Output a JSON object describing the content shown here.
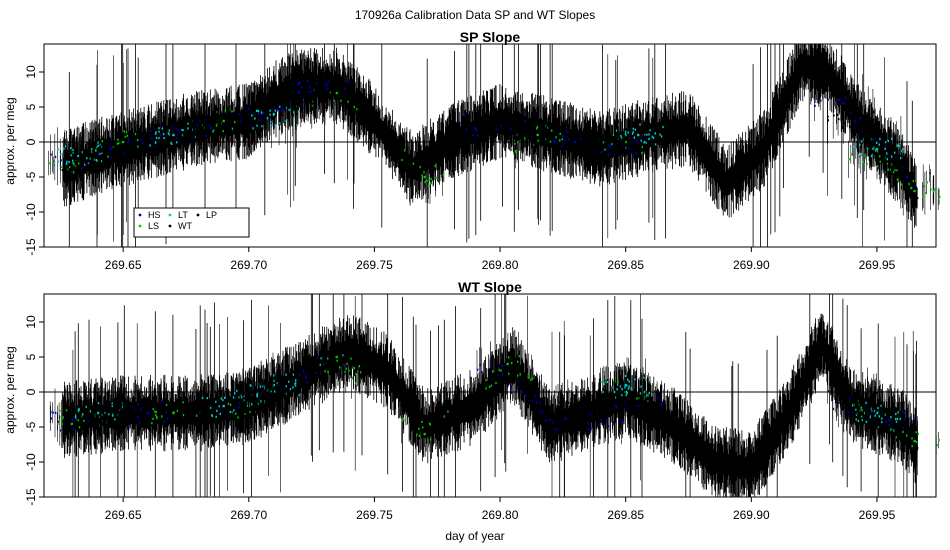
{
  "chart_data": {
    "suptitle": "170926a   Calibration Data SP and WT Slopes",
    "xlabel": "day of year",
    "xlim": [
      269.6185,
      269.9735
    ],
    "x_ticks": [
      269.65,
      269.7,
      269.75,
      269.8,
      269.85,
      269.9,
      269.95
    ],
    "x_tick_labels": [
      "269.65",
      "269.70",
      "269.75",
      "269.80",
      "269.85",
      "269.90",
      "269.95"
    ],
    "legend": {
      "position": "bottom-left",
      "entries": [
        {
          "label": "HS",
          "color": "#0000cc"
        },
        {
          "label": "LT",
          "color": "#00cccc"
        },
        {
          "label": "LP",
          "color": "#000000"
        },
        {
          "label": "LS",
          "color": "#00cc00"
        },
        {
          "label": "WT",
          "color": "#000000"
        }
      ]
    },
    "panels": [
      {
        "type": "scatter",
        "title": "SP Slope",
        "ylabel": "approx. per meg",
        "ylim": [
          -15,
          14
        ],
        "y_ticks": [
          -15,
          -10,
          -5,
          0,
          5,
          10
        ],
        "y_tick_labels": [
          "-15",
          "-10",
          "-5",
          "0",
          "5",
          "10"
        ],
        "hline": 0,
        "series": [
          {
            "name": "WT",
            "color": "#000000",
            "x": [
              269.626,
              269.64,
              269.66,
              269.68,
              269.7,
              269.71,
              269.72,
              269.735,
              269.75,
              269.765,
              269.78,
              269.8,
              269.82,
              269.84,
              269.86,
              269.875,
              269.89,
              269.905,
              269.92,
              269.93,
              269.945,
              269.96,
              269.966
            ],
            "y": [
              -4,
              -2,
              0,
              2,
              3,
              6,
              8,
              8,
              3,
              -4,
              0,
              3,
              1,
              -1,
              1,
              2,
              -6,
              -1,
              11,
              10,
              2,
              -4,
              -8
            ]
          },
          {
            "name": "HS",
            "color": "#0000cc",
            "x": [
              269.628,
              269.645,
              269.665,
              269.685,
              269.705,
              269.72,
              269.73,
              269.79,
              269.81,
              269.83,
              269.85,
              269.935,
              269.95,
              269.962
            ],
            "y": [
              -3,
              -1,
              1,
              2,
              4,
              7,
              8,
              2,
              3,
              0,
              -1,
              6,
              0,
              -5
            ]
          },
          {
            "name": "LS",
            "color": "#00cc00",
            "x": [
              269.63,
              269.65,
              269.69,
              269.735,
              269.77,
              269.815,
              269.85,
              269.948,
              269.965
            ],
            "y": [
              -3,
              0,
              3,
              7,
              -5,
              1,
              0,
              -2,
              -7
            ]
          },
          {
            "name": "LT",
            "color": "#00cccc",
            "x": [
              269.632,
              269.67,
              269.71,
              269.855,
              269.95
            ],
            "y": [
              -2,
              1,
              4,
              1,
              -1
            ]
          },
          {
            "name": "LP",
            "color": "#000000",
            "x": [
              269.64,
              269.68,
              269.725,
              269.81,
              269.84,
              269.94
            ],
            "y": [
              -1,
              2,
              6,
              2,
              -1,
              3
            ]
          }
        ]
      },
      {
        "type": "scatter",
        "title": "WT Slope",
        "ylabel": "approx. per meg",
        "ylim": [
          -15,
          14
        ],
        "y_ticks": [
          -15,
          -10,
          -5,
          0,
          5,
          10
        ],
        "y_tick_labels": [
          "-15",
          "-10",
          "-5",
          "0",
          "5",
          "10"
        ],
        "hline": 0,
        "series": [
          {
            "name": "WT",
            "color": "#000000",
            "x": [
              269.626,
              269.65,
              269.68,
              269.7,
              269.72,
              269.74,
              269.755,
              269.77,
              269.79,
              269.805,
              269.82,
              269.85,
              269.87,
              269.885,
              269.9,
              269.915,
              269.928,
              269.94,
              269.96,
              269.966
            ],
            "y": [
              -4,
              -3,
              -3,
              -2,
              2,
              6,
              3,
              -5,
              -2,
              4,
              -5,
              -1,
              -5,
              -10,
              -11,
              -3,
              7,
              -2,
              -5,
              -8
            ]
          },
          {
            "name": "HS",
            "color": "#0000cc",
            "x": [
              269.63,
              269.66,
              269.69,
              269.71,
              269.73,
              269.8,
              269.82,
              269.84,
              269.855,
              269.94,
              269.955
            ],
            "y": [
              -4,
              -3,
              -2,
              0,
              4,
              3,
              -4,
              -4,
              -2,
              -2,
              -4
            ]
          },
          {
            "name": "LS",
            "color": "#00cc00",
            "x": [
              269.632,
              269.67,
              269.7,
              269.735,
              269.77,
              269.803,
              269.85,
              269.945,
              269.965
            ],
            "y": [
              -4,
              -3,
              -2,
              5,
              -6,
              4,
              0,
              -3,
              -7
            ]
          },
          {
            "name": "LT",
            "color": "#00cccc",
            "x": [
              269.64,
              269.69,
              269.71,
              269.85,
              269.95
            ],
            "y": [
              -3,
              -2,
              1,
              1,
              -3
            ]
          },
          {
            "name": "LP",
            "color": "#000000",
            "x": [
              269.645,
              269.705,
              269.83,
              269.94
            ],
            "y": [
              -3,
              -1,
              -3,
              -1
            ]
          }
        ]
      }
    ]
  }
}
